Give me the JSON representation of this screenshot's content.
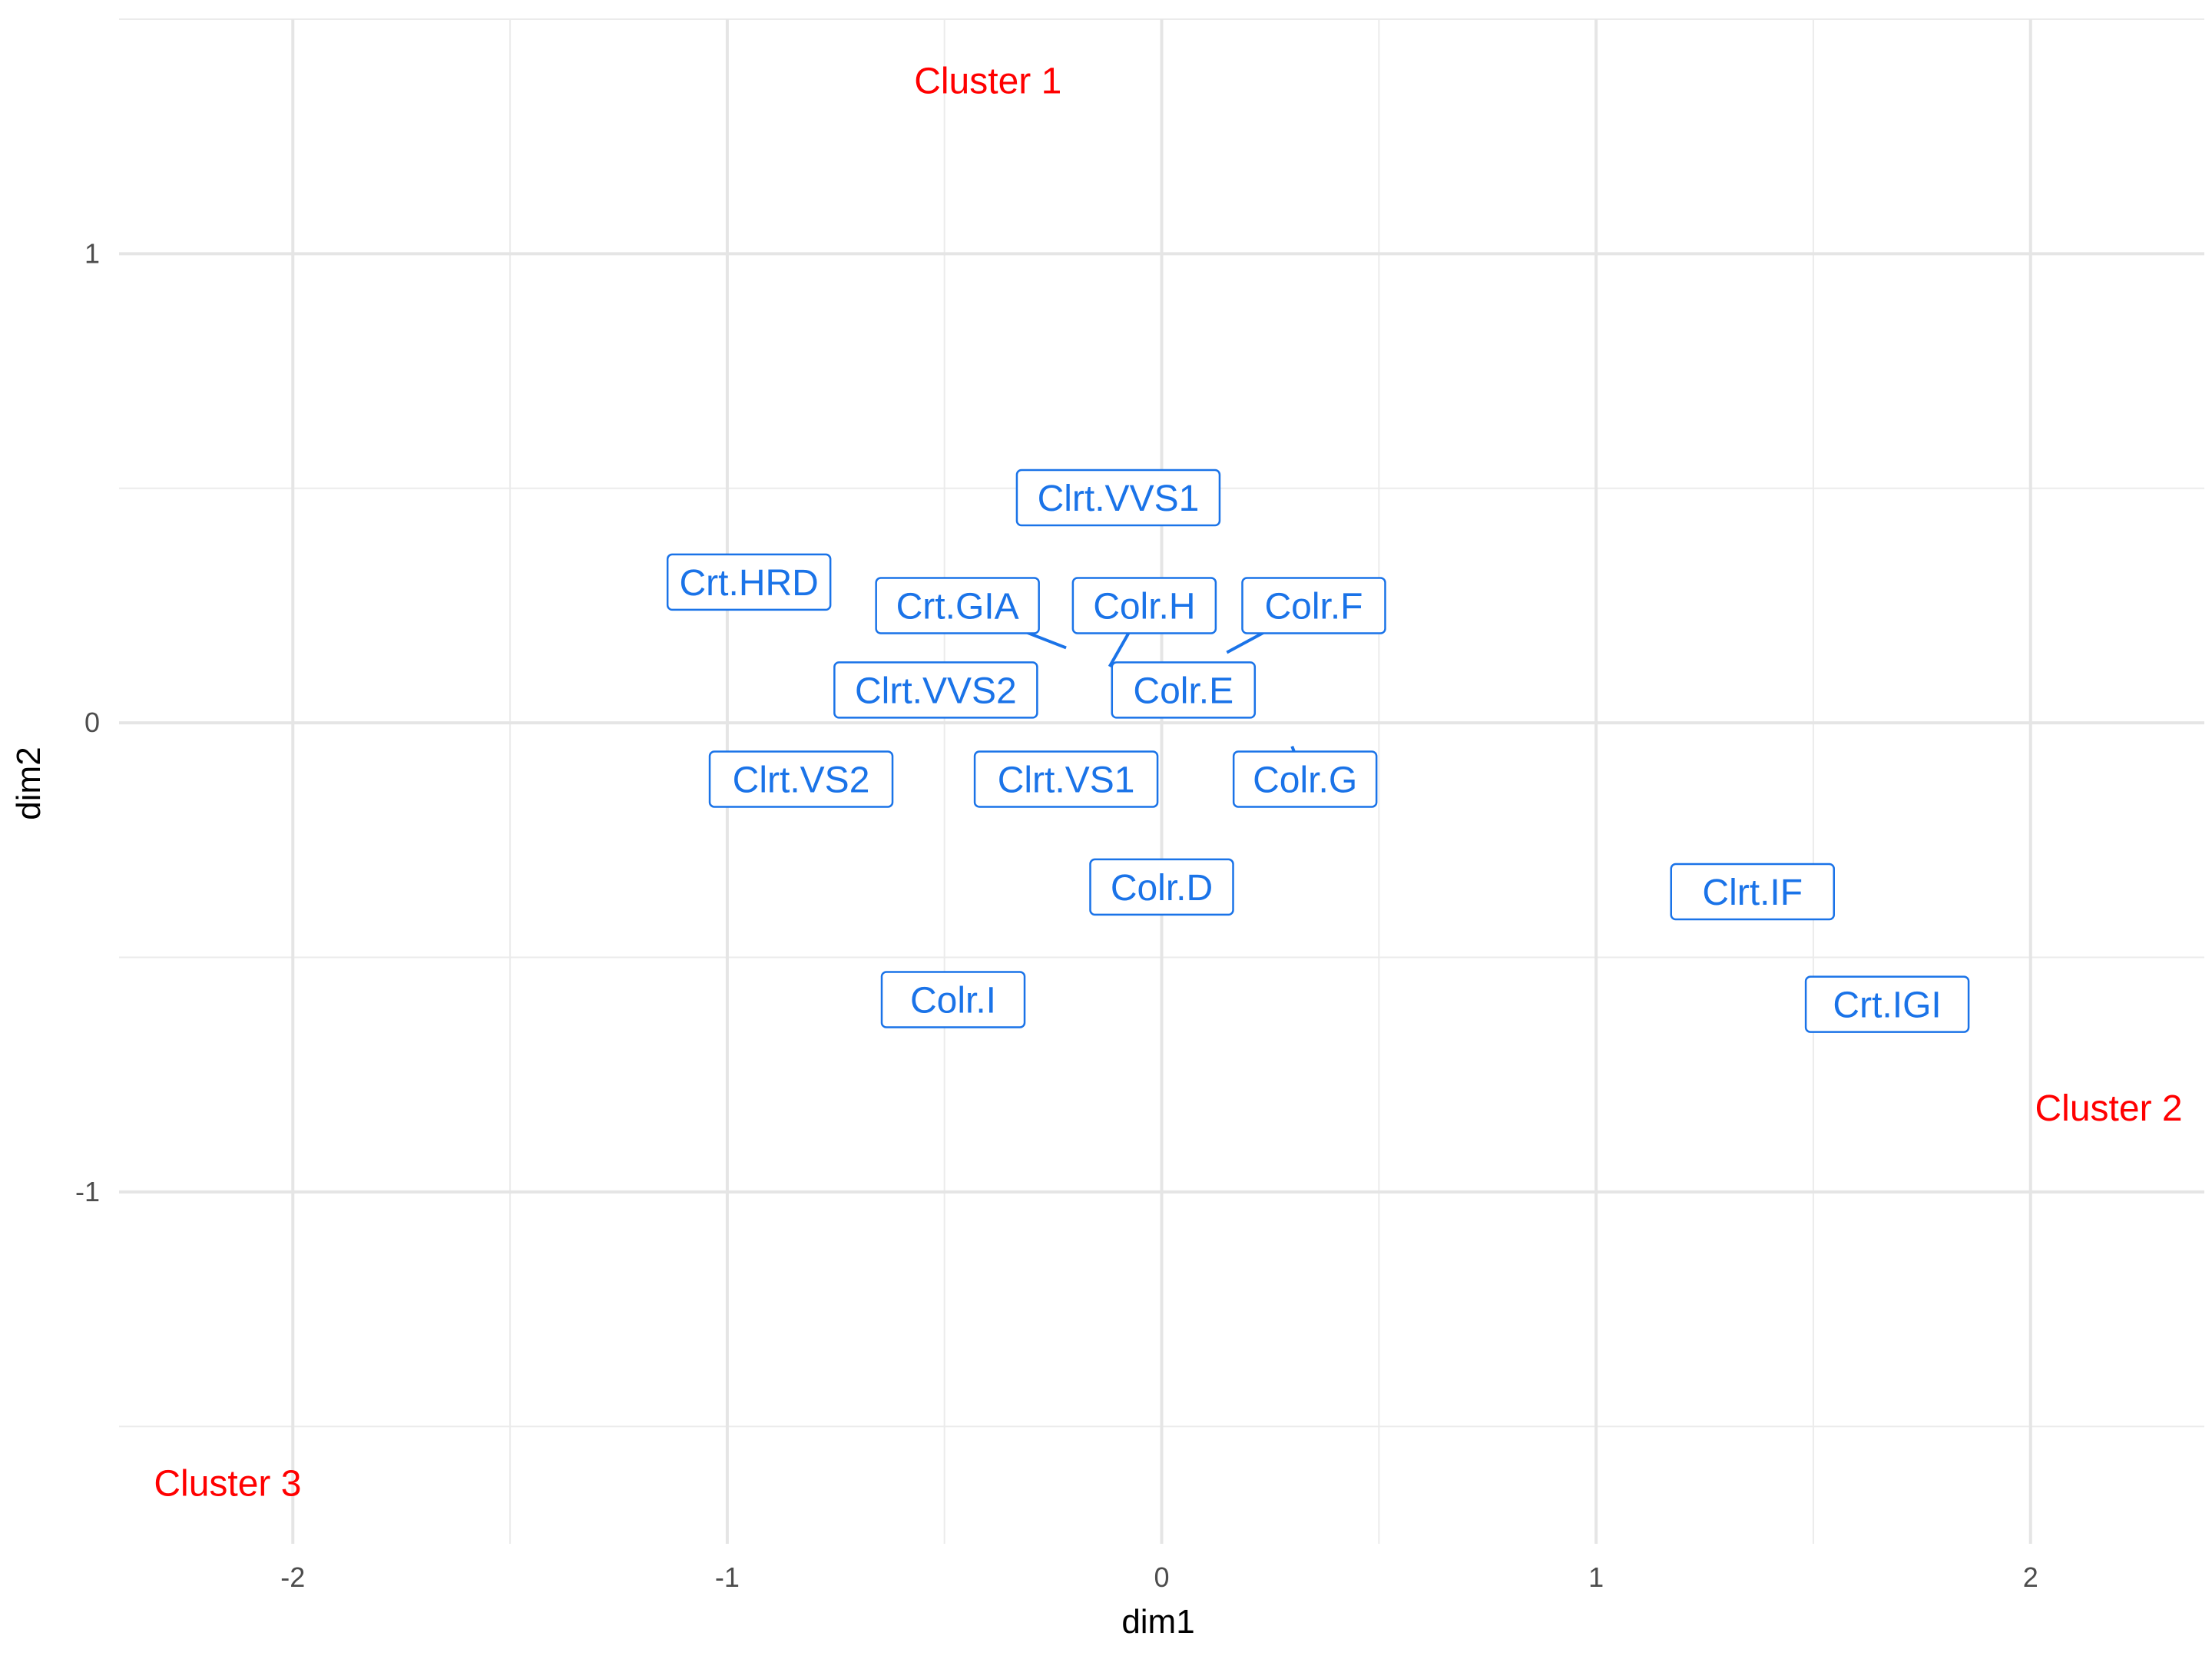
{
  "chart_data": {
    "type": "scatter",
    "title": "",
    "xlabel": "dim1",
    "ylabel": "dim2",
    "xlim": [
      -2.4,
      2.4
    ],
    "ylim": [
      -1.75,
      1.5
    ],
    "x_ticks": [
      -2,
      -1,
      0,
      1,
      2
    ],
    "y_ticks": [
      -1,
      0,
      1
    ],
    "x_tick_labels": [
      "-2",
      "-1",
      "0",
      "1",
      "2"
    ],
    "y_tick_labels": [
      "-1",
      "0",
      "1"
    ],
    "grid": true,
    "colors": {
      "points": "#1a73e8",
      "clusters": "#ff0000"
    },
    "points": [
      {
        "label": "Crt.HRD",
        "x": -0.95,
        "y": 0.3
      },
      {
        "label": "Clrt.VVS1",
        "x": -0.1,
        "y": 0.48
      },
      {
        "label": "Crt.GIA",
        "x": -0.22,
        "y": 0.16,
        "label_at": [
          -0.47,
          0.25
        ]
      },
      {
        "label": "Colr.H",
        "x": -0.12,
        "y": 0.12,
        "label_at": [
          -0.04,
          0.25
        ]
      },
      {
        "label": "Colr.F",
        "x": 0.15,
        "y": 0.15,
        "label_at": [
          0.35,
          0.25
        ]
      },
      {
        "label": "Clrt.VVS2",
        "x": -0.52,
        "y": 0.07
      },
      {
        "label": "Colr.E",
        "x": 0.05,
        "y": 0.07
      },
      {
        "label": "Colr.G",
        "x": 0.3,
        "y": -0.05,
        "label_at": [
          0.33,
          -0.12
        ]
      },
      {
        "label": "Clrt.VS2",
        "x": -0.83,
        "y": -0.12
      },
      {
        "label": "Clrt.VS1",
        "x": -0.22,
        "y": -0.12
      },
      {
        "label": "Colr.D",
        "x": 0.0,
        "y": -0.35
      },
      {
        "label": "Colr.I",
        "x": -0.48,
        "y": -0.59
      },
      {
        "label": "Clrt.IF",
        "x": 1.36,
        "y": -0.36
      },
      {
        "label": "Crt.IGI",
        "x": 1.67,
        "y": -0.6
      }
    ],
    "clusters": [
      {
        "label": "Cluster 1",
        "x": -0.4,
        "y": 1.37
      },
      {
        "label": "Cluster 2",
        "x": 2.18,
        "y": -0.82
      },
      {
        "label": "Cluster 3",
        "x": -2.15,
        "y": -1.62
      }
    ]
  }
}
